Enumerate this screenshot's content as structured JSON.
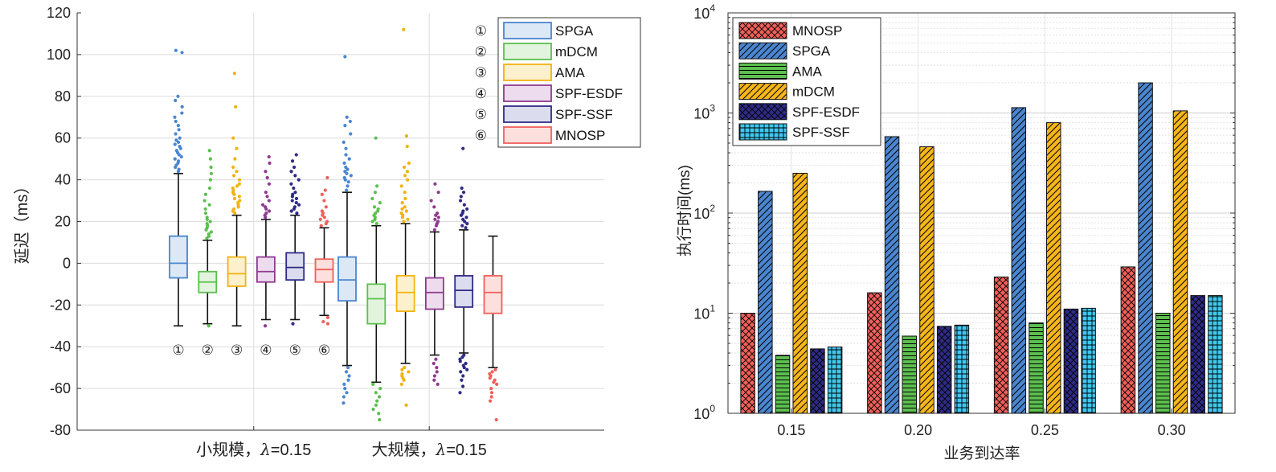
{
  "chart_data": [
    {
      "type": "box",
      "ylabel": "延迟（ms）",
      "ylim": [
        -80,
        120
      ],
      "yticks": [
        -80,
        -60,
        -40,
        -20,
        0,
        20,
        40,
        60,
        80,
        100,
        120
      ],
      "grid": true,
      "legend_position": "top-right",
      "groups": [
        {
          "label_prefix": "小规模，",
          "label_lambda": "λ",
          "label_suffix": "=0.15"
        },
        {
          "label_prefix": "大规模，",
          "label_lambda": "λ",
          "label_suffix": "=0.15"
        }
      ],
      "series": [
        {
          "marker": "①",
          "name": "SPGA",
          "color": "#4a86cf",
          "fill": "#dde8f7",
          "stats": [
            {
              "q1": -7,
              "median": 0,
              "q3": 13,
              "whisker_low": -30,
              "whisker_high": 43,
              "outliers": [
                44,
                45,
                46,
                47,
                48,
                49,
                50,
                51,
                52,
                53,
                54,
                55,
                56,
                57,
                58,
                59,
                60,
                62,
                64,
                66,
                68,
                70,
                72,
                75,
                78,
                80,
                101,
                102
              ]
            },
            {
              "q1": -18,
              "median": -8,
              "q3": 3,
              "whisker_low": -49,
              "whisker_high": 34,
              "outliers": [
                35,
                37,
                39,
                40,
                41,
                42,
                43,
                44,
                45,
                46,
                48,
                50,
                52,
                55,
                58,
                62,
                66,
                68,
                70,
                99,
                -50,
                -52,
                -54,
                -56,
                -58,
                -60,
                -62,
                -64,
                -67
              ]
            }
          ]
        },
        {
          "marker": "②",
          "name": "mDCM",
          "color": "#5cbf4f",
          "fill": "#e3f4de",
          "stats": [
            {
              "q1": -14,
              "median": -9,
              "q3": -4,
              "whisker_low": -29,
              "whisker_high": 11,
              "outliers": [
                12,
                13,
                14,
                15,
                16,
                17,
                18,
                19,
                20,
                21,
                22,
                24,
                26,
                28,
                30,
                33,
                36,
                40,
                43,
                46,
                50,
                54,
                -30
              ]
            },
            {
              "q1": -29,
              "median": -17,
              "q3": -10,
              "whisker_low": -57,
              "whisker_high": 18,
              "outliers": [
                19,
                20,
                21,
                22,
                23,
                24,
                25,
                26,
                27,
                29,
                31,
                34,
                37,
                60,
                -58,
                -60,
                -62,
                -64,
                -66,
                -68,
                -70,
                -72,
                -75
              ]
            }
          ]
        },
        {
          "marker": "③",
          "name": "AMA",
          "color": "#f2b211",
          "fill": "#fdf0cc",
          "stats": [
            {
              "q1": -11,
              "median": -5,
              "q3": 3,
              "whisker_low": -30,
              "whisker_high": 23,
              "outliers": [
                24,
                25,
                26,
                27,
                28,
                29,
                30,
                31,
                32,
                33,
                34,
                35,
                36,
                37,
                38,
                40,
                42,
                44,
                46,
                50,
                55,
                60,
                75,
                91
              ]
            },
            {
              "q1": -23,
              "median": -14,
              "q3": -6,
              "whisker_low": -48,
              "whisker_high": 19,
              "outliers": [
                20,
                21,
                22,
                23,
                24,
                25,
                26,
                27,
                29,
                31,
                34,
                37,
                40,
                42,
                44,
                46,
                48,
                56,
                61,
                112,
                -50,
                -51,
                -52,
                -53,
                -54,
                -55,
                -56,
                -58,
                -68
              ]
            }
          ]
        },
        {
          "marker": "④",
          "name": "SPF-ESDF",
          "color": "#8f3a8f",
          "fill": "#ecdced",
          "stats": [
            {
              "q1": -9,
              "median": -4,
              "q3": 3,
              "whisker_low": -27,
              "whisker_high": 21,
              "outliers": [
                22,
                23,
                24,
                25,
                26,
                27,
                28,
                30,
                32,
                34,
                38,
                41,
                44,
                48,
                51,
                -30
              ]
            },
            {
              "q1": -22,
              "median": -14,
              "q3": -7,
              "whisker_low": -44,
              "whisker_high": 15,
              "outliers": [
                16,
                18,
                19,
                20,
                21,
                22,
                23,
                24,
                27,
                30,
                34,
                38,
                -46,
                -48,
                -50,
                -52,
                -54,
                -56,
                -58
              ]
            }
          ]
        },
        {
          "marker": "⑤",
          "name": "SPF-SSF",
          "color": "#2e2b86",
          "fill": "#dcdcef",
          "stats": [
            {
              "q1": -8,
              "median": -2,
              "q3": 5,
              "whisker_low": -27,
              "whisker_high": 23,
              "outliers": [
                24,
                25,
                26,
                27,
                28,
                29,
                30,
                31,
                32,
                33,
                34,
                36,
                38,
                40,
                42,
                44,
                46,
                49,
                52,
                -29
              ]
            },
            {
              "q1": -21,
              "median": -13,
              "q3": -6,
              "whisker_low": -43,
              "whisker_high": 16,
              "outliers": [
                17,
                18,
                19,
                20,
                21,
                22,
                23,
                24,
                25,
                26,
                28,
                30,
                32,
                34,
                36,
                55,
                -44,
                -45,
                -46,
                -47,
                -48,
                -49,
                -50,
                -51,
                -52,
                -54,
                -56,
                -59,
                -62
              ]
            }
          ]
        },
        {
          "marker": "⑥",
          "name": "MNOSP",
          "color": "#f0605a",
          "fill": "#fde0de",
          "stats": [
            {
              "q1": -9,
              "median": -3,
              "q3": 2,
              "whisker_low": -25,
              "whisker_high": 17,
              "outliers": [
                18,
                19,
                20,
                21,
                22,
                23,
                24,
                25,
                27,
                30,
                33,
                35,
                41,
                -26,
                -28,
                -29
              ]
            },
            {
              "q1": -24,
              "median": -14,
              "q3": -6,
              "whisker_low": -50,
              "whisker_high": 13,
              "outliers": [
                -51,
                -52,
                -53,
                -54,
                -55,
                -56,
                -57,
                -58,
                -60,
                -62,
                -64,
                -66,
                -75
              ]
            }
          ]
        }
      ]
    },
    {
      "type": "bar",
      "yscale": "log",
      "xlabel": "业务到达率",
      "ylabel": "执行时间(ms)",
      "ylim": [
        1,
        10000
      ],
      "ytick_labels": [
        {
          "base": "10",
          "exp": "0"
        },
        {
          "base": "10",
          "exp": "1"
        },
        {
          "base": "10",
          "exp": "2"
        },
        {
          "base": "10",
          "exp": "3"
        },
        {
          "base": "10",
          "exp": "4"
        }
      ],
      "categories": [
        "0.15",
        "0.20",
        "0.25",
        "0.30"
      ],
      "grid": true,
      "legend_position": "top-left",
      "series": [
        {
          "name": "MNOSP",
          "color": "#f0605a",
          "hatch": "cross",
          "values": [
            10,
            16,
            23,
            29
          ]
        },
        {
          "name": "SPGA",
          "color": "#4a86cf",
          "hatch": "diagonal",
          "values": [
            165,
            580,
            1130,
            2000
          ]
        },
        {
          "name": "AMA",
          "color": "#5cbf4f",
          "hatch": "horizontal",
          "values": [
            3.8,
            5.9,
            8,
            10
          ]
        },
        {
          "name": "mDCM",
          "color": "#f6b61a",
          "hatch": "diagonal",
          "values": [
            250,
            460,
            800,
            1050
          ]
        },
        {
          "name": "SPF-ESDF",
          "color": "#2e2b86",
          "hatch": "cross",
          "values": [
            4.4,
            7.4,
            11,
            15
          ]
        },
        {
          "name": "SPF-SSF",
          "color": "#3fc8ef",
          "hatch": "grid",
          "values": [
            4.6,
            7.6,
            11.2,
            15
          ]
        }
      ]
    }
  ]
}
